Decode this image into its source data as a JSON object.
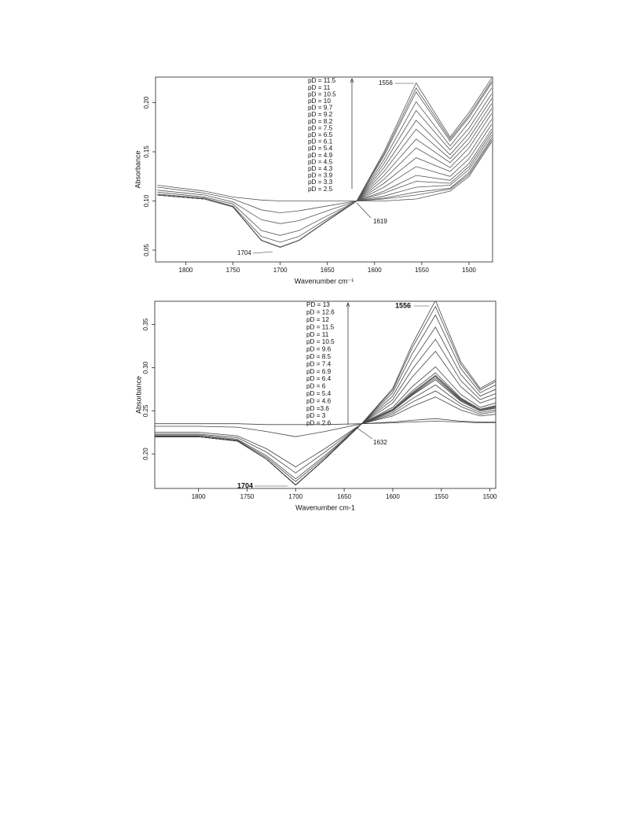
{
  "chart_data": [
    {
      "type": "line",
      "y_label": "Absorbance",
      "x_label": "Wavenumber cm⁻¹",
      "color": "#555555",
      "xlim": [
        1832,
        1475
      ],
      "xticks": [
        1800,
        1750,
        1700,
        1650,
        1600,
        1550,
        1500
      ],
      "ylim": [
        0.038,
        0.226
      ],
      "yticks": [
        {
          "value": 0.05,
          "label": "0,05"
        },
        {
          "value": 0.1,
          "label": "0,10"
        },
        {
          "value": 0.15,
          "label": "0,15"
        },
        {
          "value": 0.2,
          "label": "0,20"
        }
      ],
      "annotations": [
        "1556",
        "1619",
        "1704"
      ],
      "x": [
        1830,
        1780,
        1750,
        1720,
        1700,
        1680,
        1650,
        1619,
        1590,
        1556,
        1520,
        1500,
        1476
      ],
      "series": [
        {
          "name": "pD = 11.5",
          "values": [
            0.106,
            0.102,
            0.094,
            0.06,
            0.053,
            0.06,
            0.08,
            0.1,
            0.15,
            0.22,
            0.165,
            0.19,
            0.225
          ]
        },
        {
          "name": "pD = 11",
          "values": [
            0.106,
            0.102,
            0.094,
            0.06,
            0.053,
            0.06,
            0.08,
            0.1,
            0.148,
            0.215,
            0.163,
            0.187,
            0.222
          ]
        },
        {
          "name": "pD = 10.5",
          "values": [
            0.106,
            0.102,
            0.094,
            0.06,
            0.053,
            0.06,
            0.08,
            0.1,
            0.146,
            0.211,
            0.161,
            0.185,
            0.22
          ]
        },
        {
          "name": "pD = 10",
          "values": [
            0.106,
            0.102,
            0.094,
            0.06,
            0.053,
            0.06,
            0.08,
            0.1,
            0.142,
            0.201,
            0.156,
            0.18,
            0.215
          ]
        },
        {
          "name": "pD = 9.7",
          "values": [
            0.106,
            0.102,
            0.094,
            0.06,
            0.053,
            0.06,
            0.08,
            0.1,
            0.138,
            0.192,
            0.152,
            0.174,
            0.209
          ]
        },
        {
          "name": "pD = 9.2",
          "values": [
            0.106,
            0.102,
            0.094,
            0.06,
            0.053,
            0.06,
            0.08,
            0.1,
            0.134,
            0.182,
            0.147,
            0.169,
            0.204
          ]
        },
        {
          "name": "pD = 8.2",
          "values": [
            0.106,
            0.102,
            0.094,
            0.06,
            0.053,
            0.06,
            0.08,
            0.1,
            0.13,
            0.173,
            0.143,
            0.164,
            0.199
          ]
        },
        {
          "name": "pD = 7.5",
          "values": [
            0.106,
            0.102,
            0.094,
            0.06,
            0.053,
            0.06,
            0.08,
            0.1,
            0.126,
            0.163,
            0.139,
            0.159,
            0.194
          ]
        },
        {
          "name": "pD = 6.5",
          "values": [
            0.106,
            0.102,
            0.094,
            0.06,
            0.053,
            0.06,
            0.08,
            0.1,
            0.122,
            0.154,
            0.134,
            0.154,
            0.189
          ]
        },
        {
          "name": "pD = 6.1",
          "values": [
            0.106,
            0.102,
            0.094,
            0.06,
            0.053,
            0.06,
            0.08,
            0.1,
            0.118,
            0.144,
            0.13,
            0.148,
            0.183
          ]
        },
        {
          "name": "pD = 5.4",
          "values": [
            0.106,
            0.102,
            0.094,
            0.06,
            0.053,
            0.06,
            0.08,
            0.1,
            0.114,
            0.135,
            0.125,
            0.143,
            0.178
          ]
        },
        {
          "name": "pD = 4.9",
          "values": [
            0.106,
            0.102,
            0.094,
            0.06,
            0.053,
            0.06,
            0.08,
            0.1,
            0.11,
            0.126,
            0.121,
            0.138,
            0.173
          ]
        },
        {
          "name": "pD = 4.5",
          "values": [
            0.107,
            0.103,
            0.095,
            0.064,
            0.058,
            0.064,
            0.082,
            0.1,
            0.108,
            0.12,
            0.118,
            0.135,
            0.17
          ]
        },
        {
          "name": "pD = 4.3",
          "values": [
            0.109,
            0.104,
            0.097,
            0.07,
            0.065,
            0.07,
            0.085,
            0.1,
            0.105,
            0.114,
            0.116,
            0.132,
            0.167
          ]
        },
        {
          "name": "pD = 3.9",
          "values": [
            0.111,
            0.106,
            0.099,
            0.081,
            0.077,
            0.08,
            0.09,
            0.1,
            0.103,
            0.109,
            0.113,
            0.129,
            0.164
          ]
        },
        {
          "name": "pD = 3.3",
          "values": [
            0.114,
            0.108,
            0.102,
            0.091,
            0.088,
            0.09,
            0.095,
            0.1,
            0.102,
            0.106,
            0.112,
            0.127,
            0.162
          ]
        },
        {
          "name": "pD = 2.5",
          "values": [
            0.116,
            0.11,
            0.104,
            0.101,
            0.1,
            0.1,
            0.1,
            0.1,
            0.1,
            0.102,
            0.11,
            0.125,
            0.16
          ]
        }
      ]
    },
    {
      "type": "line",
      "y_label": "Absorbance",
      "x_label": "Wavenumber cm-1",
      "color": "#444444",
      "xlim": [
        1845,
        1494
      ],
      "xticks": [
        1800,
        1750,
        1700,
        1650,
        1600,
        1550,
        1500
      ],
      "ylim": [
        0.16,
        0.377
      ],
      "yticks": [
        {
          "value": 0.2,
          "label": "0.20"
        },
        0.25,
        {
          "value": 0.3,
          "label": "0.30"
        },
        0.35
      ],
      "annotations": [
        "1556",
        "1632",
        "1704"
      ],
      "x": [
        1845,
        1800,
        1760,
        1730,
        1700,
        1670,
        1632,
        1600,
        1580,
        1556,
        1530,
        1510,
        1494
      ],
      "series": [
        {
          "name": "PD = 13",
          "values": [
            0.22,
            0.22,
            0.215,
            0.194,
            0.164,
            0.194,
            0.235,
            0.276,
            0.327,
            0.378,
            0.307,
            0.276,
            0.286
          ]
        },
        {
          "name": "pD = 12.6",
          "values": [
            0.22,
            0.22,
            0.215,
            0.194,
            0.164,
            0.194,
            0.235,
            0.274,
            0.323,
            0.371,
            0.304,
            0.274,
            0.284
          ]
        },
        {
          "name": "pD = 12",
          "values": [
            0.22,
            0.22,
            0.215,
            0.194,
            0.164,
            0.194,
            0.235,
            0.271,
            0.316,
            0.361,
            0.299,
            0.271,
            0.28
          ]
        },
        {
          "name": "pD = 11.5",
          "values": [
            0.22,
            0.22,
            0.215,
            0.194,
            0.164,
            0.194,
            0.235,
            0.267,
            0.307,
            0.347,
            0.292,
            0.267,
            0.275
          ]
        },
        {
          "name": "pD = 11",
          "values": [
            0.22,
            0.22,
            0.215,
            0.194,
            0.164,
            0.194,
            0.235,
            0.263,
            0.298,
            0.333,
            0.285,
            0.263,
            0.27
          ]
        },
        {
          "name": "pD = 10.5",
          "values": [
            0.22,
            0.22,
            0.215,
            0.194,
            0.164,
            0.194,
            0.235,
            0.259,
            0.289,
            0.319,
            0.278,
            0.259,
            0.265
          ]
        },
        {
          "name": "pD = 9.6",
          "values": [
            0.22,
            0.22,
            0.215,
            0.194,
            0.164,
            0.194,
            0.235,
            0.254,
            0.278,
            0.301,
            0.269,
            0.254,
            0.259
          ]
        },
        {
          "name": "pD = 8.5",
          "values": [
            0.22,
            0.22,
            0.215,
            0.194,
            0.164,
            0.194,
            0.235,
            0.252,
            0.273,
            0.294,
            0.265,
            0.252,
            0.256
          ]
        },
        {
          "name": "pD = 7.4",
          "values": [
            0.22,
            0.22,
            0.215,
            0.194,
            0.164,
            0.194,
            0.235,
            0.251,
            0.271,
            0.291,
            0.264,
            0.251,
            0.255
          ]
        },
        {
          "name": "pD = 6.9",
          "values": [
            0.22,
            0.22,
            0.215,
            0.194,
            0.164,
            0.194,
            0.235,
            0.251,
            0.27,
            0.29,
            0.263,
            0.251,
            0.255
          ]
        },
        {
          "name": "pD = 6.4",
          "values": [
            0.22,
            0.22,
            0.215,
            0.194,
            0.164,
            0.194,
            0.235,
            0.25,
            0.269,
            0.288,
            0.262,
            0.25,
            0.254
          ]
        },
        {
          "name": "pD = 6",
          "values": [
            0.221,
            0.221,
            0.216,
            0.196,
            0.168,
            0.196,
            0.235,
            0.25,
            0.268,
            0.286,
            0.261,
            0.25,
            0.253
          ]
        },
        {
          "name": "pD = 5.4",
          "values": [
            0.222,
            0.222,
            0.217,
            0.198,
            0.171,
            0.198,
            0.235,
            0.248,
            0.264,
            0.28,
            0.258,
            0.248,
            0.251
          ]
        },
        {
          "name": "pD = 4.6",
          "values": [
            0.223,
            0.223,
            0.219,
            0.202,
            0.178,
            0.202,
            0.235,
            0.246,
            0.26,
            0.273,
            0.255,
            0.246,
            0.249
          ]
        },
        {
          "name": "pD =3.6",
          "values": [
            0.225,
            0.225,
            0.221,
            0.206,
            0.185,
            0.206,
            0.235,
            0.244,
            0.255,
            0.266,
            0.251,
            0.244,
            0.246
          ]
        },
        {
          "name": "pD = 3",
          "values": [
            0.232,
            0.232,
            0.231,
            0.226,
            0.22,
            0.226,
            0.235,
            0.237,
            0.239,
            0.241,
            0.238,
            0.237,
            0.237
          ]
        },
        {
          "name": "pD = 2.6",
          "values": [
            0.235,
            0.235,
            0.235,
            0.234,
            0.234,
            0.234,
            0.235,
            0.236,
            0.237,
            0.238,
            0.237,
            0.236,
            0.236
          ]
        }
      ]
    }
  ]
}
